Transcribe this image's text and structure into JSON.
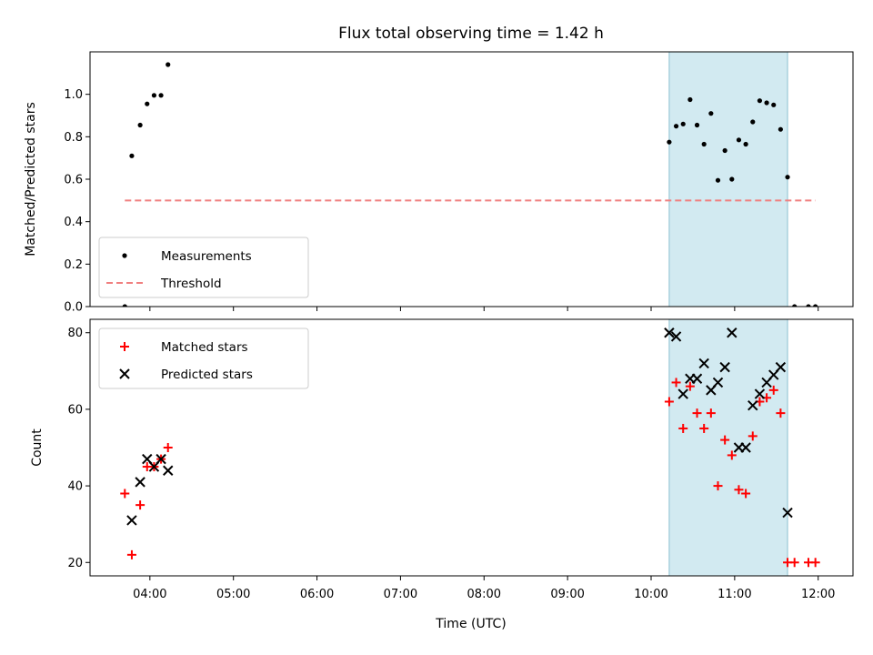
{
  "title": "Flux total observing time = 1.42 h",
  "chart_data": [
    {
      "type": "scatter",
      "ylabel": "Matched/Predicted stars",
      "xlabel": "",
      "xlim": [
        "03:17",
        "12:25"
      ],
      "ylim": [
        0,
        1.2
      ],
      "yticks": [
        0.0,
        0.2,
        0.4,
        0.6,
        0.8,
        1.0
      ],
      "ytick_labels": [
        "0.0",
        "0.2",
        "0.4",
        "0.6",
        "0.8",
        "1.0"
      ],
      "xticks": [
        "04:00",
        "05:00",
        "06:00",
        "07:00",
        "08:00",
        "09:00",
        "10:00",
        "11:00",
        "12:00"
      ],
      "shaded_span": [
        "10:13",
        "11:38"
      ],
      "shaded_color": "#add8e6",
      "legend": {
        "placement": "lower-left",
        "entries": [
          "Measurements",
          "Threshold"
        ]
      },
      "series": [
        {
          "name": "Measurements",
          "marker": "dot",
          "color": "#000000",
          "points": [
            [
              "03:42",
              0.0
            ],
            [
              "03:47",
              0.71
            ],
            [
              "03:53",
              0.855
            ],
            [
              "03:58",
              0.955
            ],
            [
              "04:03",
              0.995
            ],
            [
              "04:08",
              0.995
            ],
            [
              "04:13",
              1.14
            ],
            [
              "10:13",
              0.775
            ],
            [
              "10:18",
              0.85
            ],
            [
              "10:23",
              0.86
            ],
            [
              "10:28",
              0.975
            ],
            [
              "10:33",
              0.855
            ],
            [
              "10:38",
              0.765
            ],
            [
              "10:43",
              0.91
            ],
            [
              "10:48",
              0.595
            ],
            [
              "10:53",
              0.735
            ],
            [
              "10:58",
              0.6
            ],
            [
              "11:03",
              0.785
            ],
            [
              "11:08",
              0.765
            ],
            [
              "11:13",
              0.87
            ],
            [
              "11:18",
              0.97
            ],
            [
              "11:23",
              0.96
            ],
            [
              "11:28",
              0.95
            ],
            [
              "11:33",
              0.835
            ],
            [
              "11:38",
              0.61
            ],
            [
              "11:43",
              0.0
            ],
            [
              "11:53",
              0.0
            ],
            [
              "11:58",
              0.0
            ]
          ]
        },
        {
          "name": "Threshold",
          "marker": "dashed-line",
          "color": "#f08080",
          "points": [
            [
              "03:42",
              0.5
            ],
            [
              "11:58",
              0.5
            ]
          ]
        }
      ]
    },
    {
      "type": "scatter",
      "ylabel": "Count",
      "xlabel": "Time (UTC)",
      "xlim": [
        "03:17",
        "12:25"
      ],
      "ylim": [
        16.5,
        83.5
      ],
      "yticks": [
        20,
        40,
        60,
        80
      ],
      "ytick_labels": [
        "20",
        "40",
        "60",
        "80"
      ],
      "xticks": [
        "04:00",
        "05:00",
        "06:00",
        "07:00",
        "08:00",
        "09:00",
        "10:00",
        "11:00",
        "12:00"
      ],
      "xtick_labels": [
        "04:00",
        "05:00",
        "06:00",
        "07:00",
        "08:00",
        "09:00",
        "10:00",
        "11:00",
        "12:00"
      ],
      "shaded_span": [
        "10:13",
        "11:38"
      ],
      "shaded_color": "#add8e6",
      "legend": {
        "placement": "upper-left",
        "entries": [
          "Matched stars",
          "Predicted stars"
        ]
      },
      "series": [
        {
          "name": "Matched stars",
          "marker": "plus",
          "color": "#ff0000",
          "points": [
            [
              "03:42",
              38
            ],
            [
              "03:47",
              22
            ],
            [
              "03:53",
              35
            ],
            [
              "03:58",
              45
            ],
            [
              "04:03",
              45
            ],
            [
              "04:08",
              47
            ],
            [
              "04:13",
              50
            ],
            [
              "10:13",
              62
            ],
            [
              "10:18",
              67
            ],
            [
              "10:23",
              55
            ],
            [
              "10:28",
              66
            ],
            [
              "10:33",
              59
            ],
            [
              "10:38",
              55
            ],
            [
              "10:43",
              59
            ],
            [
              "10:48",
              40
            ],
            [
              "10:53",
              52
            ],
            [
              "10:58",
              48
            ],
            [
              "11:03",
              39
            ],
            [
              "11:08",
              38
            ],
            [
              "11:13",
              53
            ],
            [
              "11:18",
              62
            ],
            [
              "11:23",
              63
            ],
            [
              "11:28",
              65
            ],
            [
              "11:33",
              59
            ],
            [
              "11:38",
              20
            ],
            [
              "11:43",
              20
            ],
            [
              "11:53",
              20
            ],
            [
              "11:58",
              20
            ]
          ]
        },
        {
          "name": "Predicted stars",
          "marker": "x",
          "color": "#000000",
          "points": [
            [
              "03:47",
              31
            ],
            [
              "03:53",
              41
            ],
            [
              "03:58",
              47
            ],
            [
              "04:03",
              45
            ],
            [
              "04:08",
              47
            ],
            [
              "04:13",
              44
            ],
            [
              "10:13",
              80
            ],
            [
              "10:18",
              79
            ],
            [
              "10:23",
              64
            ],
            [
              "10:28",
              68
            ],
            [
              "10:33",
              68
            ],
            [
              "10:38",
              72
            ],
            [
              "10:43",
              65
            ],
            [
              "10:48",
              67
            ],
            [
              "10:53",
              71
            ],
            [
              "10:58",
              80
            ],
            [
              "11:03",
              50
            ],
            [
              "11:08",
              50
            ],
            [
              "11:13",
              61
            ],
            [
              "11:18",
              64
            ],
            [
              "11:23",
              67
            ],
            [
              "11:28",
              69
            ],
            [
              "11:33",
              71
            ],
            [
              "11:38",
              33
            ]
          ]
        }
      ]
    }
  ]
}
